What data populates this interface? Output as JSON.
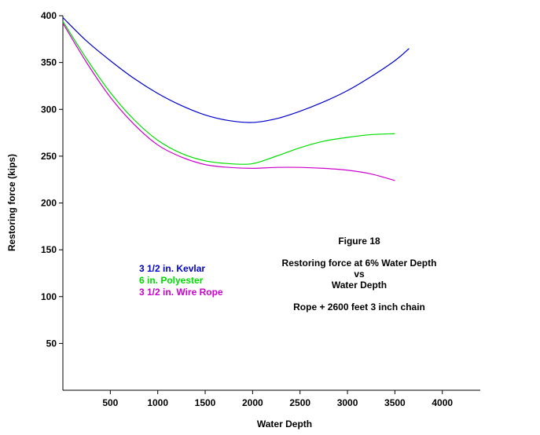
{
  "chart_data": {
    "type": "line",
    "xlabel": "Water Depth",
    "ylabel": "Restoring force (kips)",
    "xlim": [
      0,
      4400
    ],
    "ylim": [
      0,
      400
    ],
    "x_ticks": [
      500,
      1000,
      1500,
      2000,
      2500,
      3000,
      3500,
      4000
    ],
    "y_ticks": [
      50,
      100,
      150,
      200,
      250,
      300,
      350,
      400
    ],
    "grid": false,
    "legend_position": "center-left",
    "series": [
      {
        "name": "3 1/2 in. Kevlar",
        "color": "#0000cc",
        "x": [
          0,
          250,
          500,
          750,
          1000,
          1250,
          1500,
          1750,
          2000,
          2250,
          2500,
          2750,
          3000,
          3250,
          3500,
          3650
        ],
        "y": [
          398,
          373,
          352,
          333,
          317,
          304,
          294,
          288,
          286,
          290,
          298,
          308,
          320,
          335,
          352,
          365
        ]
      },
      {
        "name": "6 in. Polyester",
        "color": "#00dd00",
        "x": [
          0,
          250,
          500,
          750,
          1000,
          1250,
          1500,
          1750,
          2000,
          2250,
          2500,
          2750,
          3000,
          3250,
          3500
        ],
        "y": [
          394,
          354,
          318,
          289,
          267,
          253,
          245,
          242,
          242,
          250,
          259,
          266,
          270,
          273,
          274
        ]
      },
      {
        "name": "3 1/2 in. Wire Rope",
        "color": "#cc00cc",
        "x": [
          0,
          250,
          500,
          750,
          1000,
          1250,
          1500,
          1750,
          2000,
          2250,
          2500,
          2750,
          3000,
          3250,
          3500
        ],
        "y": [
          392,
          350,
          313,
          284,
          262,
          249,
          241,
          238,
          237,
          238,
          238,
          237,
          235,
          231,
          224
        ]
      }
    ],
    "annotations": {
      "figure_label": "Figure 18",
      "caption_line1": "Restoring force at 6% Water Depth",
      "caption_line2": "vs",
      "caption_line3": "Water Depth",
      "caption_line4": "Rope + 2600 feet 3 inch chain"
    }
  }
}
